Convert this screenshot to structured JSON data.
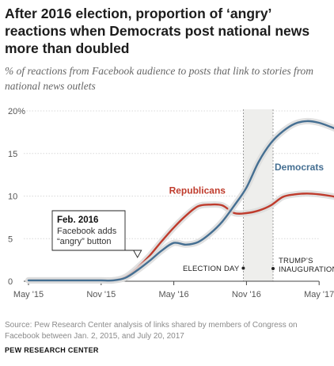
{
  "title": "After 2016 election, proportion of ‘angry’ reactions when Democrats post national news more than doubled",
  "subtitle": "% of reactions from Facebook audience to posts that link to stories from national news outlets",
  "source": "Source: Pew Research Center analysis of links shared by members of Congress on Facebook between Jan. 2, 2015, and July 20, 2017",
  "organization": "PEW RESEARCH CENTER",
  "chart_data": {
    "type": "line",
    "x_tick_labels": [
      "May '15",
      "Nov '15",
      "May '16",
      "Nov '16",
      "May '17"
    ],
    "y_tick_labels": [
      "0",
      "5",
      "10",
      "15",
      "20%"
    ],
    "ylim": [
      0,
      20
    ],
    "grid": true,
    "x": [
      "2015-05",
      "2015-06",
      "2015-07",
      "2015-08",
      "2015-09",
      "2015-10",
      "2015-11",
      "2015-12",
      "2016-01",
      "2016-02",
      "2016-03",
      "2016-04",
      "2016-05",
      "2016-06",
      "2016-07",
      "2016-08",
      "2016-09",
      "2016-10",
      "2016-11",
      "2016-12",
      "2017-01",
      "2017-02",
      "2017-03",
      "2017-04",
      "2017-05",
      "2017-06",
      "2017-07"
    ],
    "series": [
      {
        "name": "Republicans",
        "color": "#bf3b2c",
        "values": [
          0.1,
          0.1,
          0.1,
          0.1,
          0.1,
          0.1,
          0.1,
          0.1,
          0.5,
          1.6,
          3.0,
          4.7,
          6.3,
          7.7,
          8.8,
          9.0,
          8.9,
          8.0,
          8.0,
          8.3,
          8.9,
          9.9,
          10.2,
          10.3,
          10.2,
          10.0,
          9.7
        ]
      },
      {
        "name": "Democrats",
        "color": "#456f92",
        "values": [
          0.1,
          0.1,
          0.1,
          0.1,
          0.1,
          0.1,
          0.1,
          0.1,
          0.4,
          1.3,
          2.4,
          3.6,
          4.5,
          4.3,
          4.6,
          5.6,
          7.0,
          8.9,
          11.0,
          14.0,
          16.2,
          17.6,
          18.5,
          18.8,
          18.6,
          18.1,
          17.5
        ]
      }
    ],
    "shaded_period": {
      "start": "2016-11",
      "end": "2017-01"
    },
    "annotations": {
      "feb2016": {
        "heading": "Feb. 2016",
        "text": "Facebook adds “angry” button",
        "x": "2016-02"
      },
      "election_day": "ELECTION DAY",
      "inauguration": "TRUMP’S INAUGURATION"
    }
  }
}
